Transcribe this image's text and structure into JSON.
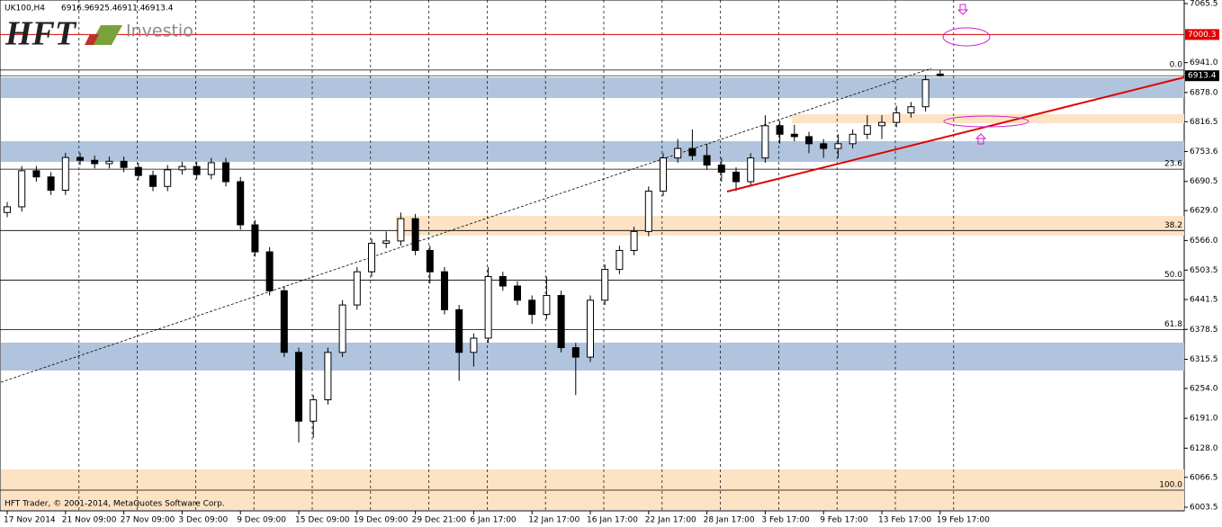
{
  "chart_data": {
    "type": "candlestick",
    "symbol": "UK100,H4",
    "logo": "HFT",
    "logo_sub": "Investio",
    "copyright": "HFT Trader, © 2001-2014, MetaQuotes Software Corp.",
    "ylim": [
      5995.9,
      7073.1
    ],
    "yticks": [
      7065.5,
      {
        "value": 6941.0,
        "label": "6941.0"
      },
      {
        "value": 6878.0,
        "label": "6878.0"
      },
      6816.5,
      6753.6,
      6690.5,
      {
        "value": 6629.0,
        "label": "6629.0"
      },
      {
        "value": 6566.0,
        "label": "6566.0"
      },
      6503.5,
      6441.5,
      6378.5,
      6315.5,
      {
        "value": 6254.0,
        "label": "6254.0"
      },
      {
        "value": 6191.0,
        "label": "6191.0"
      },
      {
        "value": 6128.0,
        "label": "6128.0"
      },
      6066.5,
      6003.5
    ],
    "xticks": [
      "17 Nov 2014",
      "21 Nov 09:00",
      "27 Nov 09:00",
      "3 Dec 09:00",
      "9 Dec 09:00",
      "15 Dec 09:00",
      "19 Dec 09:00",
      "29 Dec 21:00",
      "6 Jan 17:00",
      "12 Jan 17:00",
      "16 Jan 17:00",
      "22 Jan 17:00",
      "28 Jan 17:00",
      "3 Feb 17:00",
      "9 Feb 17:00",
      "13 Feb 17:00",
      "19 Feb 17:00"
    ],
    "resistance": 7000.3,
    "fib_levels": [
      {
        "value": 6925.4,
        "label": "0.0"
      },
      {
        "value": 6716.3,
        "label": "23.6"
      },
      {
        "value": 6587.0,
        "label": "38.2"
      },
      {
        "value": 6482.5,
        "label": "50.0"
      },
      {
        "value": 6378.0,
        "label": "61.8"
      },
      {
        "value": 6039.5,
        "label": "100.0"
      }
    ],
    "open": [
      6625,
      6637,
      6713,
      6700,
      6672,
      6741,
      6735,
      6728,
      6733,
      6720,
      6703,
      6680,
      6715,
      6722,
      6705,
      6730,
      6690,
      6599,
      6542,
      6460,
      6330,
      6185,
      6230,
      6330,
      6430,
      6500,
      6560,
      6565,
      6612,
      6545,
      6500,
      6420,
      6330,
      6360,
      6490,
      6470,
      6440,
      6410,
      6450,
      6340,
      6320,
      6440,
      6505,
      6545,
      6585,
      6670,
      6740,
      6760,
      6745,
      6725,
      6710,
      6690,
      6740,
      6808,
      6790,
      6785,
      6770,
      6760,
      6770,
      6790,
      6808,
      6815,
      6835,
      6848,
      6916.9
    ],
    "high": [
      6647,
      6723,
      6723,
      6710,
      6751,
      6751,
      6745,
      6743,
      6743,
      6730,
      6713,
      6725,
      6732,
      6732,
      6740,
      6740,
      6700,
      6609,
      6552,
      6470,
      6340,
      6240,
      6340,
      6440,
      6510,
      6570,
      6585,
      6625,
      6622,
      6555,
      6510,
      6430,
      6370,
      6510,
      6500,
      6480,
      6450,
      6490,
      6460,
      6350,
      6450,
      6515,
      6555,
      6595,
      6680,
      6750,
      6780,
      6800,
      6770,
      6740,
      6720,
      6750,
      6830,
      6818,
      6810,
      6795,
      6780,
      6790,
      6800,
      6830,
      6830,
      6850,
      6858,
      6915,
      6925.4
    ],
    "low": [
      6615,
      6627,
      6690,
      6662,
      6662,
      6725,
      6718,
      6718,
      6710,
      6693,
      6670,
      6670,
      6705,
      6695,
      6695,
      6680,
      6589,
      6532,
      6450,
      6320,
      6140,
      6150,
      6220,
      6320,
      6420,
      6490,
      6550,
      6555,
      6535,
      6475,
      6410,
      6270,
      6300,
      6350,
      6460,
      6430,
      6390,
      6400,
      6330,
      6240,
      6310,
      6430,
      6495,
      6535,
      6575,
      6660,
      6730,
      6735,
      6715,
      6690,
      6670,
      6680,
      6730,
      6770,
      6775,
      6750,
      6740,
      6740,
      6760,
      6780,
      6780,
      6805,
      6825,
      6838,
      6911.4
    ],
    "close": [
      6637,
      6713,
      6700,
      6672,
      6741,
      6735,
      6728,
      6733,
      6720,
      6703,
      6680,
      6715,
      6722,
      6705,
      6730,
      6690,
      6599,
      6542,
      6460,
      6330,
      6185,
      6230,
      6330,
      6430,
      6500,
      6560,
      6565,
      6612,
      6545,
      6500,
      6420,
      6330,
      6360,
      6490,
      6470,
      6440,
      6410,
      6450,
      6340,
      6320,
      6440,
      6505,
      6545,
      6585,
      6670,
      6740,
      6760,
      6745,
      6725,
      6710,
      6690,
      6740,
      6808,
      6790,
      6785,
      6770,
      6760,
      6770,
      6790,
      6808,
      6815,
      6835,
      6848,
      6905,
      6913.4
    ]
  }
}
